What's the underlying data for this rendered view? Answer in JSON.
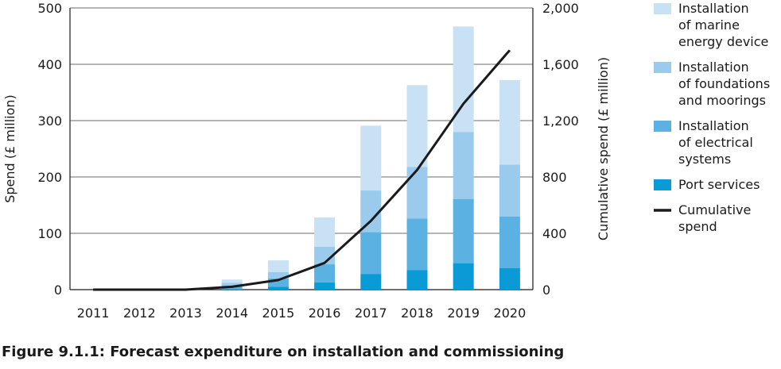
{
  "caption": "Figure 9.1.1: Forecast expenditure on installation and commissioning",
  "chart_data": {
    "type": "bar",
    "stacked": true,
    "categories": [
      "2011",
      "2012",
      "2013",
      "2014",
      "2015",
      "2016",
      "2017",
      "2018",
      "2019",
      "2020"
    ],
    "ylabel": "Spend (£ million)",
    "ylabel2": "Cumulative spend (£ million)",
    "ylim": [
      0,
      500
    ],
    "ylim2": [
      0,
      2000
    ],
    "yticks": [
      "0",
      "100",
      "200",
      "300",
      "400",
      "500"
    ],
    "yticks2": [
      "0",
      "400",
      "800",
      "1,200",
      "1,600",
      "2,000"
    ],
    "grid": true,
    "legend_position": "right",
    "series": [
      {
        "name": "Port services",
        "color": "#0a9bd6",
        "values": [
          0,
          0,
          0,
          1,
          5,
          13,
          28,
          35,
          47,
          38
        ]
      },
      {
        "name": "Installation of electrical systems",
        "color": "#5ab1e2",
        "values": [
          0,
          0,
          0,
          6,
          15,
          32,
          74,
          91,
          114,
          92
        ]
      },
      {
        "name": "Installation of foundations and moorings",
        "color": "#9acaec",
        "values": [
          0,
          0,
          0,
          5,
          11,
          31,
          74,
          92,
          119,
          92
        ]
      },
      {
        "name": "Installation of marine energy device",
        "color": "#c9e1f4",
        "values": [
          0,
          0,
          0,
          6,
          21,
          52,
          115,
          145,
          187,
          150
        ]
      }
    ],
    "line_series": {
      "name": "Cumulative spend",
      "color": "#1a1a1a",
      "axis": "right",
      "values": [
        0,
        0,
        0,
        20,
        68,
        190,
        488,
        850,
        1320,
        1700
      ]
    },
    "legend_entries": [
      {
        "lines": [
          "Installation",
          "of marine",
          "energy device"
        ],
        "color": "#c9e1f4",
        "kind": "box"
      },
      {
        "lines": [
          "Installation",
          "of foundations",
          "and moorings"
        ],
        "color": "#9acaec",
        "kind": "box"
      },
      {
        "lines": [
          "Installation",
          "of electrical",
          "systems"
        ],
        "color": "#5ab1e2",
        "kind": "box"
      },
      {
        "lines": [
          "Port services"
        ],
        "color": "#0a9bd6",
        "kind": "box"
      },
      {
        "lines": [
          "Cumulative",
          "spend"
        ],
        "color": "#1a1a1a",
        "kind": "line"
      }
    ]
  }
}
